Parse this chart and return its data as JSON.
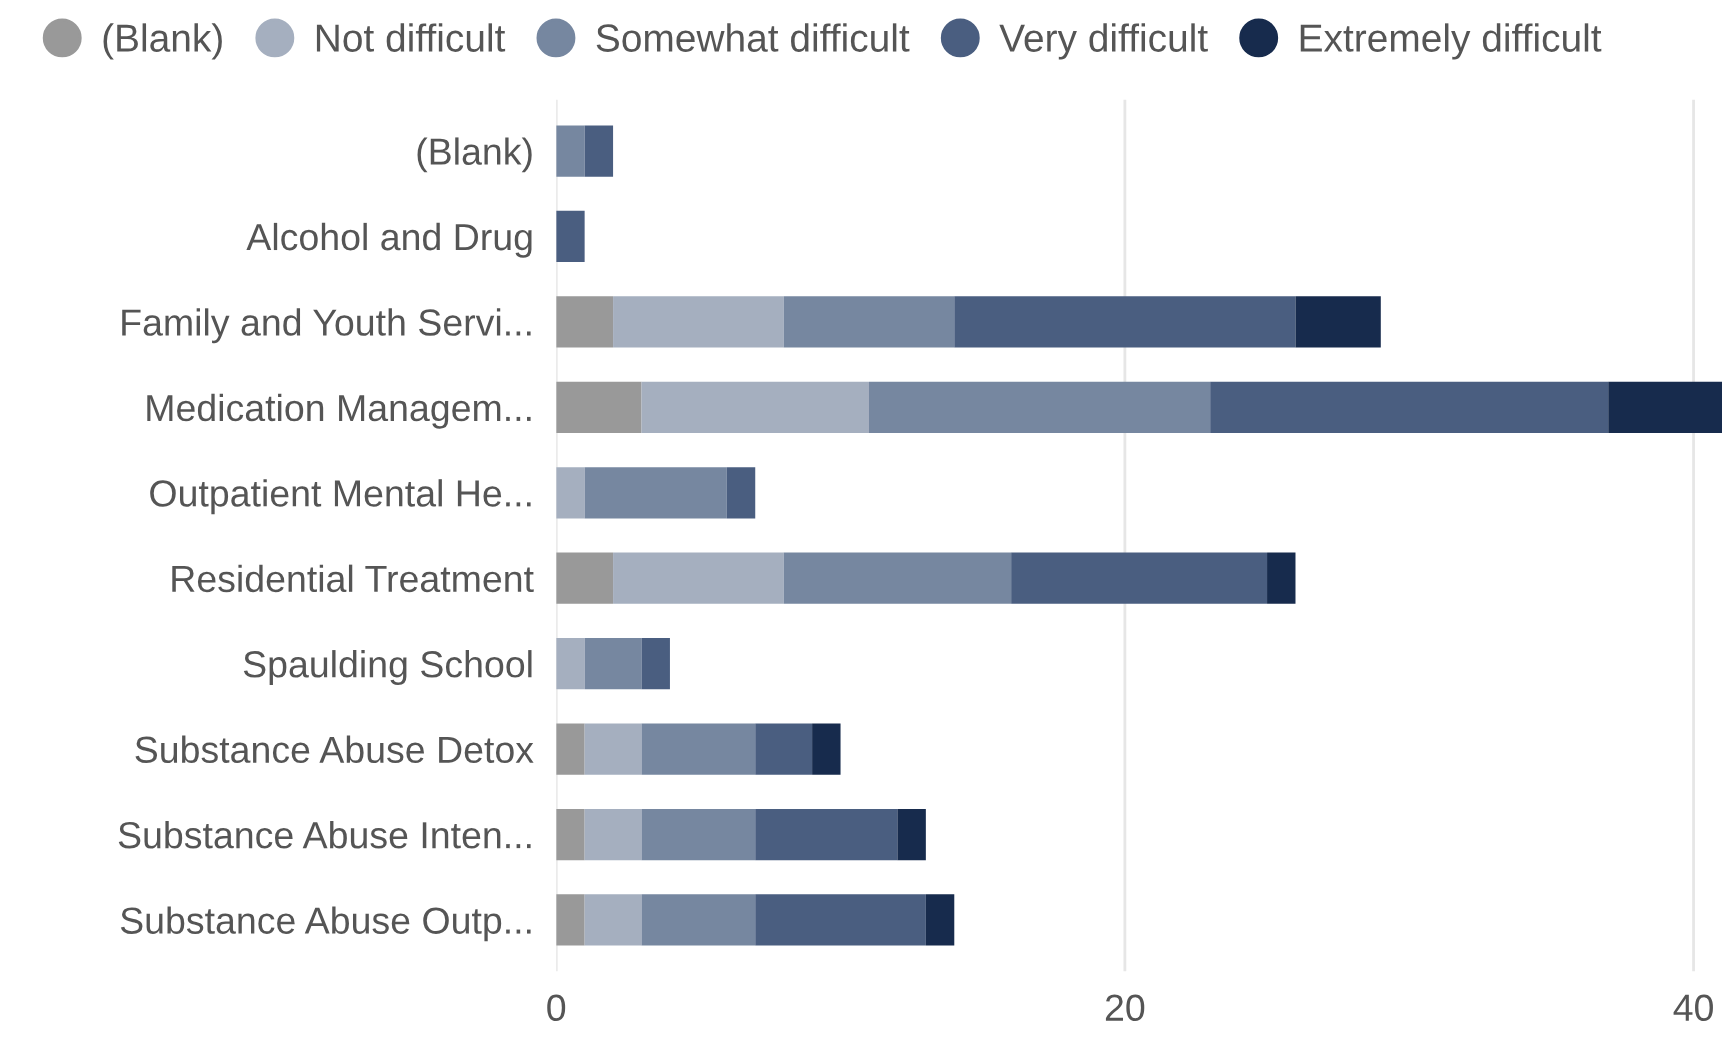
{
  "chart_data": {
    "type": "bar",
    "orientation": "horizontal",
    "stacked": true,
    "categories": [
      "(Blank)",
      "Alcohol and Drug",
      "Family and Youth Servi...",
      "Medication Managem...",
      "Outpatient Mental He...",
      "Residential Treatment",
      "Spaulding School",
      "Substance Abuse Detox",
      "Substance Abuse Inten...",
      "Substance Abuse Outp..."
    ],
    "series": [
      {
        "name": "(Blank)",
        "color": "#999999",
        "values": [
          0,
          0,
          2,
          3,
          0,
          2,
          0,
          1,
          1,
          1
        ]
      },
      {
        "name": "Not difficult",
        "color": "#a5afbf",
        "values": [
          0,
          0,
          6,
          8,
          1,
          6,
          1,
          2,
          2,
          2
        ]
      },
      {
        "name": "Somewhat difficult",
        "color": "#7687a0",
        "values": [
          1,
          0,
          6,
          12,
          5,
          8,
          2,
          4,
          4,
          4
        ]
      },
      {
        "name": "Very difficult",
        "color": "#4a5e80",
        "values": [
          1,
          1,
          12,
          14,
          1,
          9,
          1,
          2,
          5,
          6
        ]
      },
      {
        "name": "Extremely difficult",
        "color": "#172b4d",
        "values": [
          0,
          0,
          3,
          4,
          0,
          1,
          0,
          1,
          1,
          1
        ]
      }
    ],
    "xlim": [
      0,
      41
    ],
    "xticks": [
      0,
      20,
      40
    ],
    "grid": "x",
    "legend": "top",
    "marker": "circle"
  }
}
